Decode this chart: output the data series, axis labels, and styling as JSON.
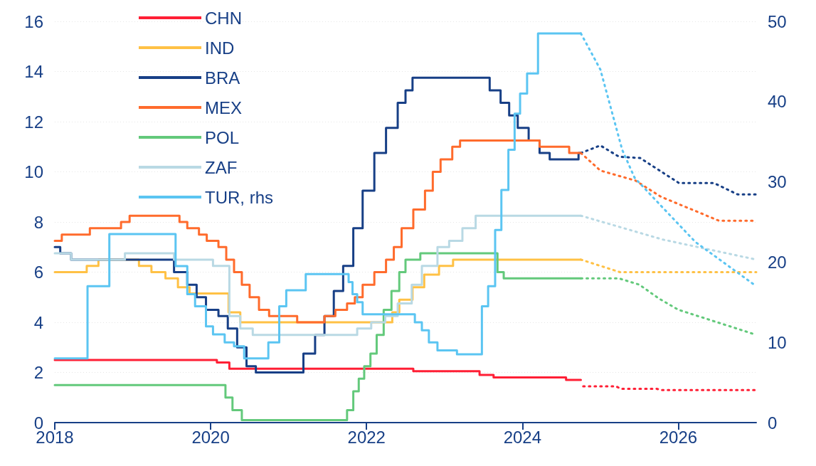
{
  "chart_data": {
    "type": "step",
    "xlim": [
      2018,
      2027
    ],
    "xticks": [
      2018,
      2020,
      2022,
      2024,
      2026
    ],
    "ylim": [
      0,
      16
    ],
    "yticks": [
      0,
      2,
      4,
      6,
      8,
      10,
      12,
      14,
      16
    ],
    "y2lim": [
      0,
      50
    ],
    "y2ticks": [
      0,
      10,
      20,
      30,
      40,
      50
    ],
    "grid": "y",
    "legend": "top left",
    "series": [
      {
        "name": "CHN",
        "color": "#ff1f35",
        "x": [
          2018,
          2020.08,
          2020.24,
          2022.6,
          2023.45,
          2023.63,
          2024.56,
          2024.75
        ],
        "values": [
          2.5,
          2.4,
          2.15,
          2.05,
          1.9,
          1.8,
          1.7,
          1.7
        ]
      },
      {
        "name": "IND",
        "color": "#ffc145",
        "x": [
          2018,
          2018.41,
          2018.56,
          2019.08,
          2019.24,
          2019.42,
          2019.58,
          2019.73,
          2020.23,
          2020.38,
          2022.33,
          2022.42,
          2022.59,
          2022.74,
          2022.93,
          2023.11,
          2024.75
        ],
        "values": [
          6.0,
          6.25,
          6.5,
          6.25,
          6.0,
          5.75,
          5.4,
          5.15,
          4.4,
          4.0,
          4.4,
          4.9,
          5.4,
          5.9,
          6.25,
          6.5,
          6.5
        ]
      },
      {
        "name": "BRA",
        "color": "#173f86",
        "x": [
          2018,
          2018.07,
          2018.21,
          2019.53,
          2019.7,
          2019.82,
          2019.94,
          2020.1,
          2020.22,
          2020.34,
          2020.46,
          2020.58,
          2021.19,
          2021.34,
          2021.46,
          2021.58,
          2021.7,
          2021.83,
          2021.95,
          2022.1,
          2022.25,
          2022.4,
          2022.5,
          2022.59,
          2023.58,
          2023.72,
          2023.83,
          2023.94,
          2024.08,
          2024.22,
          2024.35,
          2024.72,
          2024.75
        ],
        "values": [
          7.0,
          6.75,
          6.5,
          6.0,
          5.5,
          5.0,
          4.5,
          4.25,
          3.75,
          3.0,
          2.25,
          2.0,
          2.75,
          3.5,
          4.25,
          5.25,
          6.25,
          7.75,
          9.25,
          10.75,
          11.75,
          12.75,
          13.25,
          13.75,
          13.25,
          12.75,
          12.25,
          11.75,
          11.25,
          10.75,
          10.5,
          10.75,
          10.75
        ]
      },
      {
        "name": "MEX",
        "color": "#ff6b2c",
        "x": [
          2018,
          2018.09,
          2018.45,
          2018.85,
          2018.96,
          2019.6,
          2019.7,
          2019.85,
          2019.95,
          2020.1,
          2020.2,
          2020.3,
          2020.4,
          2020.5,
          2020.62,
          2020.75,
          2021.11,
          2021.46,
          2021.6,
          2021.75,
          2021.85,
          2021.95,
          2022.1,
          2022.25,
          2022.35,
          2022.45,
          2022.6,
          2022.75,
          2022.85,
          2022.95,
          2023.1,
          2023.2,
          2024.22,
          2024.6,
          2024.75
        ],
        "values": [
          7.25,
          7.5,
          7.75,
          8.0,
          8.25,
          8.0,
          7.75,
          7.5,
          7.25,
          7.0,
          6.5,
          6.0,
          5.5,
          5.0,
          4.5,
          4.25,
          4.0,
          4.25,
          4.5,
          4.75,
          5.0,
          5.5,
          6.0,
          6.5,
          7.0,
          7.75,
          8.5,
          9.25,
          10.0,
          10.5,
          11.0,
          11.25,
          11.0,
          10.75,
          10.75
        ]
      },
      {
        "name": "POL",
        "color": "#63c97b",
        "x": [
          2018,
          2020.19,
          2020.28,
          2020.4,
          2021.75,
          2021.83,
          2021.9,
          2021.97,
          2022.05,
          2022.13,
          2022.22,
          2022.32,
          2022.42,
          2022.5,
          2022.69,
          2023.68,
          2023.76,
          2024.75
        ],
        "values": [
          1.5,
          1.0,
          0.5,
          0.1,
          0.5,
          1.25,
          1.75,
          2.25,
          2.75,
          3.5,
          4.5,
          5.25,
          6.0,
          6.5,
          6.75,
          6.0,
          5.75,
          5.75
        ]
      },
      {
        "name": "ZAF",
        "color": "#b9d9e4",
        "x": [
          2018,
          2018.21,
          2018.9,
          2019.53,
          2020.03,
          2020.24,
          2020.38,
          2020.54,
          2021.88,
          2022.06,
          2022.24,
          2022.4,
          2022.58,
          2022.71,
          2022.91,
          2023.06,
          2023.23,
          2023.4,
          2024.75
        ],
        "values": [
          6.75,
          6.5,
          6.75,
          6.5,
          6.25,
          4.25,
          3.75,
          3.5,
          3.75,
          4.0,
          4.25,
          4.75,
          5.5,
          6.25,
          7.0,
          7.25,
          7.75,
          8.25,
          8.25
        ]
      },
      {
        "name": "TUR, rhs",
        "color": "#5bc5f2",
        "axis": "y2",
        "x": [
          2018,
          2018.42,
          2018.7,
          2019.55,
          2019.7,
          2019.8,
          2019.94,
          2020.03,
          2020.18,
          2020.3,
          2020.43,
          2020.74,
          2020.88,
          2020.97,
          2021.22,
          2021.77,
          2021.82,
          2021.88,
          2021.95,
          2022.62,
          2022.71,
          2022.8,
          2022.91,
          2023.16,
          2023.48,
          2023.56,
          2023.65,
          2023.73,
          2023.82,
          2023.9,
          2023.97,
          2024.06,
          2024.2,
          2024.75
        ],
        "values": [
          8,
          17,
          23.5,
          19.5,
          16,
          14.5,
          12,
          11,
          10,
          9.5,
          8,
          10,
          14.5,
          16.5,
          18.5,
          17.5,
          16,
          15,
          13.5,
          12.5,
          11.5,
          10,
          9,
          8.5,
          14.5,
          17,
          24,
          29,
          34,
          38.5,
          41,
          43.5,
          48.5,
          48.5
        ]
      },
      {
        "color": "#ff1f35",
        "type": "line",
        "line_style": "dotted",
        "x": [
          2024.78,
          2025.2,
          2025.26,
          2025.72,
          2025.78,
          2027
        ],
        "values": [
          1.45,
          1.45,
          1.35,
          1.35,
          1.3,
          1.3
        ]
      },
      {
        "color": "#ffc145",
        "type": "line",
        "line_style": "dotted",
        "x": [
          2024.75,
          2025.25,
          2027
        ],
        "values": [
          6.5,
          6.0,
          6.0
        ]
      },
      {
        "color": "#173f86",
        "type": "line",
        "line_style": "dotted",
        "x": [
          2024.75,
          2025.0,
          2025.24,
          2025.51,
          2026.01,
          2026.46,
          2026.76,
          2027
        ],
        "values": [
          10.75,
          11.05,
          10.6,
          10.55,
          9.55,
          9.55,
          9.1,
          9.1
        ]
      },
      {
        "color": "#ff6b2c",
        "type": "line",
        "line_style": "dotted",
        "x": [
          2024.75,
          2025.0,
          2025.45,
          2025.78,
          2026.25,
          2026.52,
          2027
        ],
        "values": [
          10.75,
          10.05,
          9.65,
          9.0,
          8.4,
          8.05,
          8.05
        ]
      },
      {
        "color": "#63c97b",
        "type": "line",
        "line_style": "dotted",
        "x": [
          2024.75,
          2025.24,
          2025.5,
          2025.75,
          2026.0,
          2026.5,
          2027
        ],
        "values": [
          5.75,
          5.75,
          5.5,
          4.95,
          4.5,
          4.0,
          3.5
        ]
      },
      {
        "color": "#b9d9e4",
        "type": "line",
        "line_style": "dotted",
        "x": [
          2024.75,
          2025.8,
          2027
        ],
        "values": [
          8.25,
          7.3,
          6.5
        ]
      },
      {
        "color": "#5bc5f2",
        "type": "line",
        "line_style": "dotted",
        "axis": "y2",
        "x": [
          2024.75,
          2025.0,
          2025.14,
          2025.28,
          2025.44,
          2025.78,
          2026.22,
          2027
        ],
        "values": [
          48.5,
          44,
          39,
          34,
          30.5,
          27,
          22.5,
          17
        ]
      }
    ]
  }
}
